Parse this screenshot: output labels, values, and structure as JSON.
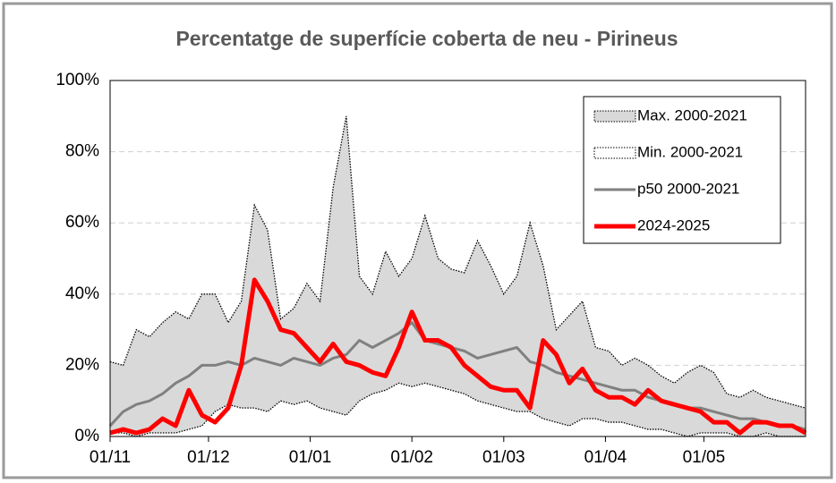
{
  "chart_data": {
    "type": "line",
    "title": "Percentatge de superfície coberta de neu  -  Pirineus",
    "x": [
      0,
      4,
      8,
      12,
      16,
      20,
      24,
      28,
      32,
      36,
      40,
      44,
      48,
      52,
      56,
      60,
      64,
      68,
      72,
      76,
      80,
      84,
      88,
      92,
      96,
      100,
      104,
      108,
      112,
      116,
      120,
      124,
      128,
      132,
      136,
      140,
      144,
      148,
      152,
      156,
      160,
      164,
      168,
      172,
      176,
      180,
      184,
      188,
      192,
      196,
      200,
      204,
      208,
      212
    ],
    "xlim": [
      0,
      212
    ],
    "xticks": [
      {
        "value": 0,
        "label": "01/11"
      },
      {
        "value": 30,
        "label": "01/12"
      },
      {
        "value": 61,
        "label": "01/01"
      },
      {
        "value": 92,
        "label": "01/02"
      },
      {
        "value": 120,
        "label": "01/03"
      },
      {
        "value": 151,
        "label": "01/04"
      },
      {
        "value": 181,
        "label": "01/05"
      }
    ],
    "ylim": [
      0,
      100
    ],
    "yticks": [
      {
        "value": 0,
        "label": "0%"
      },
      {
        "value": 20,
        "label": "20%"
      },
      {
        "value": 40,
        "label": "40%"
      },
      {
        "value": 60,
        "label": "60%"
      },
      {
        "value": 80,
        "label": "80%"
      },
      {
        "value": 100,
        "label": "100%"
      }
    ],
    "grid": true,
    "legend": "top-right",
    "series": [
      {
        "name": "Max. 2000-2021",
        "style": "area",
        "color": "#d9d9d9",
        "values": [
          21,
          20,
          30,
          28,
          32,
          35,
          33,
          40,
          40,
          32,
          38,
          65,
          58,
          33,
          36,
          43,
          38,
          70,
          90,
          45,
          40,
          52,
          45,
          50,
          62,
          50,
          47,
          46,
          55,
          48,
          40,
          45,
          60,
          48,
          30,
          34,
          38,
          25,
          24,
          20,
          22,
          20,
          17,
          15,
          18,
          20,
          18,
          12,
          11,
          13,
          11,
          10,
          9,
          8
        ]
      },
      {
        "name": "Min. 2000-2021",
        "style": "area",
        "color": "#ffffff",
        "values": [
          1,
          1,
          0,
          1,
          1,
          1,
          2,
          3,
          7,
          9,
          8,
          8,
          7,
          10,
          9,
          10,
          8,
          7,
          6,
          10,
          12,
          13,
          15,
          14,
          15,
          14,
          13,
          12,
          10,
          9,
          8,
          7,
          7,
          5,
          4,
          3,
          5,
          5,
          4,
          4,
          3,
          2,
          2,
          1,
          0,
          1,
          1,
          1,
          0,
          0,
          1,
          0,
          0,
          0
        ]
      },
      {
        "name": "p50 2000-2021",
        "style": "line",
        "color": "#808080",
        "values": [
          3,
          7,
          9,
          10,
          12,
          15,
          17,
          20,
          20,
          21,
          20,
          22,
          21,
          20,
          22,
          21,
          20,
          22,
          23,
          27,
          25,
          27,
          29,
          32,
          27,
          26,
          25,
          24,
          22,
          23,
          24,
          25,
          21,
          20,
          18,
          17,
          16,
          15,
          14,
          13,
          13,
          11,
          10,
          9,
          8,
          8,
          7,
          6,
          5,
          5,
          4,
          3,
          3,
          2
        ]
      },
      {
        "name": "2024-2025",
        "style": "line",
        "color": "#ff0000",
        "values": [
          1,
          2,
          1,
          2,
          5,
          3,
          13,
          6,
          4,
          8,
          20,
          44,
          38,
          30,
          29,
          25,
          21,
          26,
          21,
          20,
          18,
          17,
          25,
          35,
          27,
          27,
          25,
          20,
          17,
          14,
          13,
          13,
          8,
          27,
          23,
          15,
          19,
          13,
          11,
          11,
          9,
          13,
          10,
          9,
          8,
          7,
          4,
          4,
          1,
          4,
          4,
          3,
          3,
          1
        ]
      }
    ]
  }
}
